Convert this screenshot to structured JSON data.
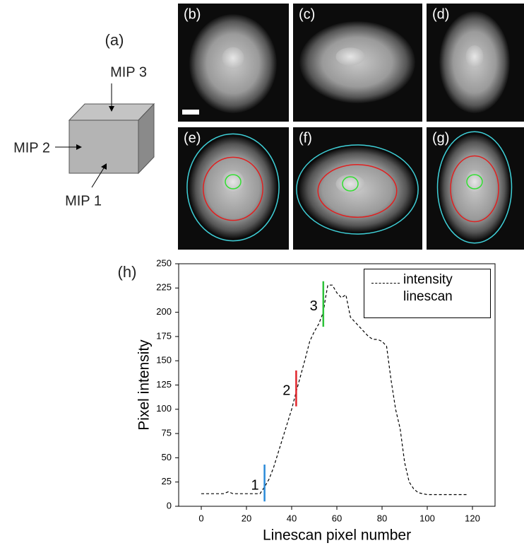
{
  "panel_a": {
    "label": "(a)",
    "views": [
      "MIP 3",
      "MIP 2",
      "MIP 1"
    ]
  },
  "image_panels": [
    "(b)",
    "(c)",
    "(d)",
    "(e)",
    "(f)",
    "(g)"
  ],
  "chart_data": {
    "type": "line",
    "label": "(h)",
    "x_label": "Linescan pixel number",
    "y_label": "Pixel intensity",
    "x": [
      0,
      10,
      12,
      14,
      20,
      26,
      28,
      30,
      32,
      34,
      36,
      38,
      40,
      42,
      44,
      46,
      48,
      50,
      52,
      54,
      55,
      56,
      58,
      60,
      62,
      64,
      66,
      68,
      70,
      72,
      74,
      76,
      78,
      80,
      82,
      84,
      86,
      88,
      90,
      92,
      94,
      96,
      100,
      110,
      118
    ],
    "series": [
      {
        "name": "intensity linescan",
        "color": "#000000",
        "dashed": true,
        "values": [
          13,
          13,
          15,
          13,
          13,
          13,
          20,
          28,
          40,
          55,
          70,
          85,
          100,
          118,
          135,
          152,
          170,
          180,
          188,
          200,
          215,
          228,
          228,
          220,
          215,
          218,
          195,
          190,
          185,
          180,
          175,
          172,
          172,
          170,
          165,
          130,
          100,
          80,
          45,
          25,
          18,
          14,
          12,
          12,
          12
        ]
      }
    ],
    "markers": [
      {
        "label": "1",
        "x": 28,
        "ymin": 5,
        "ymax": 43,
        "color": "#2a8ad8"
      },
      {
        "label": "2",
        "x": 42,
        "ymin": 103,
        "ymax": 140,
        "color": "#e0262c"
      },
      {
        "label": "3",
        "x": 54,
        "ymin": 185,
        "ymax": 232,
        "color": "#2ec23a"
      }
    ],
    "xlim": [
      -10,
      130
    ],
    "xticks": [
      0,
      20,
      40,
      60,
      80,
      100,
      120
    ],
    "ylim": [
      0,
      250
    ],
    "yticks": [
      0,
      25,
      50,
      75,
      100,
      125,
      150,
      175,
      200,
      225,
      250
    ],
    "grid": false,
    "legend": "top-right"
  }
}
